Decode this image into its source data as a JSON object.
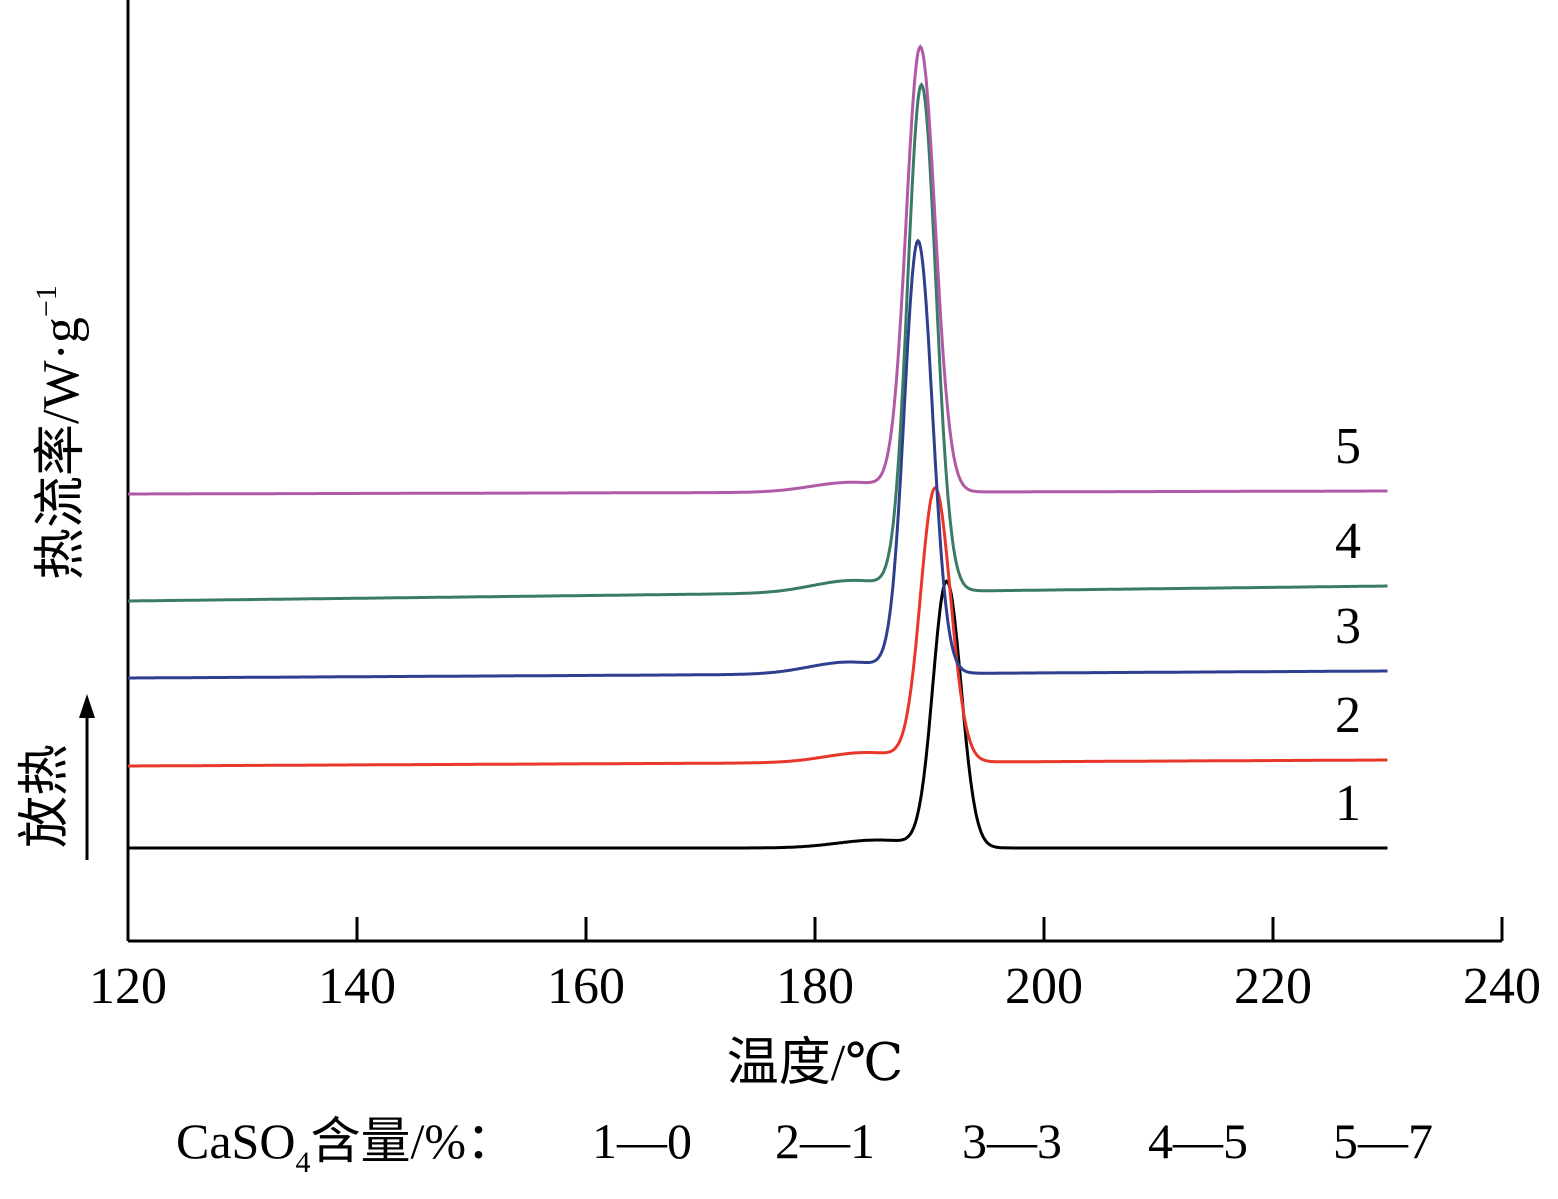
{
  "chart_data": {
    "type": "line",
    "xlabel": "温度/℃",
    "ylabel": "热流率/W·g",
    "ylabel_exponent": "−1",
    "exo_label": "放热",
    "xlim": [
      120,
      240
    ],
    "xticks": [
      120,
      140,
      160,
      180,
      200,
      220,
      240
    ],
    "tick_labels": [
      "120",
      "140",
      "160",
      "180",
      "200",
      "220",
      "240"
    ],
    "legend": {
      "prefix": "CaSO",
      "prefix_sub": "4",
      "suffix": "含量/%：",
      "entries": [
        "1—0",
        "2—1",
        "3—3",
        "4—5",
        "5—7"
      ]
    },
    "series": [
      {
        "name": "1",
        "color": "#000000",
        "baseline_start": 0.0,
        "baseline_end": 0.0,
        "shoulder": 0.08,
        "peak_x": 191.5,
        "peak_height": 2.65,
        "width": 1.7
      },
      {
        "name": "2",
        "color": "#e8372a",
        "baseline_start": 0.82,
        "baseline_end": 0.88,
        "shoulder": 0.1,
        "peak_x": 190.5,
        "peak_height": 2.72,
        "width": 1.8
      },
      {
        "name": "3",
        "color": "#2f3f8f",
        "baseline_start": 1.7,
        "baseline_end": 1.77,
        "shoulder": 0.12,
        "peak_x": 189.0,
        "peak_height": 4.3,
        "width": 1.7
      },
      {
        "name": "4",
        "color": "#3a7a66",
        "baseline_start": 2.47,
        "baseline_end": 2.62,
        "shoulder": 0.12,
        "peak_x": 189.3,
        "peak_height": 5.04,
        "width": 1.7
      },
      {
        "name": "5",
        "color": "#b05aa6",
        "baseline_start": 3.54,
        "baseline_end": 3.57,
        "shoulder": 0.1,
        "peak_x": 189.2,
        "peak_height": 4.43,
        "width": 1.75
      }
    ],
    "grid": false
  }
}
